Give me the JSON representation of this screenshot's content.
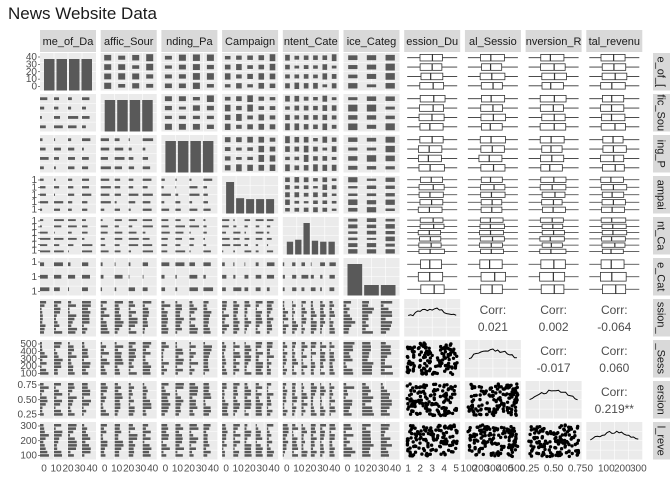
{
  "title": "News Website Data",
  "chart_data": {
    "type": "pairs",
    "variables": [
      "Time_of_Day",
      "Traffic_Source",
      "Landing_Page",
      "Campaign",
      "Content_Category",
      "Device_Category",
      "Session_Duration",
      "Total_Sessions",
      "Conversion_Rate",
      "Total_revenue"
    ],
    "column_strip_labels": [
      "me_of_Da",
      "affic_Sour",
      "nding_Pa",
      "Campaign",
      "ntent_Cate",
      "ice_Categ",
      "ession_Du",
      "al_Sessio",
      "nversion_R",
      "tal_revenu"
    ],
    "row_strip_labels": [
      "e_of_[",
      "fic_Sou",
      "ing_P",
      "ampai",
      "nt_Ca",
      "e_Cat",
      "ssion_",
      "_Sess",
      "ersion",
      "l_reve"
    ],
    "variable_kinds": [
      "factor",
      "factor",
      "factor",
      "factor",
      "factor",
      "factor",
      "numeric",
      "numeric",
      "numeric",
      "numeric"
    ],
    "factor_levels": [
      4,
      4,
      4,
      5,
      6,
      3
    ],
    "factor_level_proportions": [
      [
        0.25,
        0.25,
        0.25,
        0.25
      ],
      [
        0.25,
        0.25,
        0.25,
        0.25
      ],
      [
        0.25,
        0.25,
        0.25,
        0.25
      ],
      [
        0.35,
        0.17,
        0.16,
        0.16,
        0.16
      ],
      [
        0.13,
        0.15,
        0.32,
        0.14,
        0.13,
        0.13
      ],
      [
        0.6,
        0.2,
        0.2
      ]
    ],
    "count_axis_ticks": [
      "40",
      "30",
      "20",
      "10",
      "0"
    ],
    "level_tick_rows": [
      [],
      [],
      [],
      [
        "1",
        "1",
        "1",
        "1",
        "1"
      ],
      [
        "1",
        "1",
        "1",
        "1",
        "1",
        "1"
      ],
      [
        "1",
        "1",
        "1"
      ]
    ],
    "numeric_axis_ticks": {
      "Total_Sessions": [
        "500",
        "400",
        "300",
        "200",
        "100"
      ],
      "Conversion_Rate": [
        "0.75",
        "0.50",
        "0.25"
      ],
      "Total_revenue": [
        "300",
        "200",
        "100"
      ]
    },
    "bottom_axis_ticks": [
      "0 10 20 30 40",
      "0 10 20 30 40",
      "0 10 20 30 40",
      "0 10 20 30 40",
      "0 10 20 30 40",
      "0 10 20 30 40",
      "1  2  3  4  5",
      "100 200 300 400 500",
      "0.25 0.50 0.75",
      "0 100 200 300"
    ],
    "correlations": [
      {
        "row": "Total_Sessions",
        "col": "Session_Duration",
        "value": "0.021"
      },
      {
        "row": "Conversion_Rate",
        "col": "Session_Duration",
        "value": "0.002"
      },
      {
        "row": "Conversion_Rate",
        "col": "Total_Sessions",
        "value": "-0.017"
      },
      {
        "row": "Total_revenue",
        "col": "Session_Duration",
        "value": "-0.064"
      },
      {
        "row": "Total_revenue",
        "col": "Total_Sessions",
        "value": "0.060"
      },
      {
        "row": "Total_revenue",
        "col": "Conversion_Rate",
        "value": "0.219**"
      }
    ],
    "corr_label": "Corr:"
  },
  "colors": {
    "panel_bg": "#ebebeb",
    "strip_bg": "#d9d9d9",
    "bar": "#595959",
    "point": "#000000",
    "grid": "#ffffff"
  }
}
